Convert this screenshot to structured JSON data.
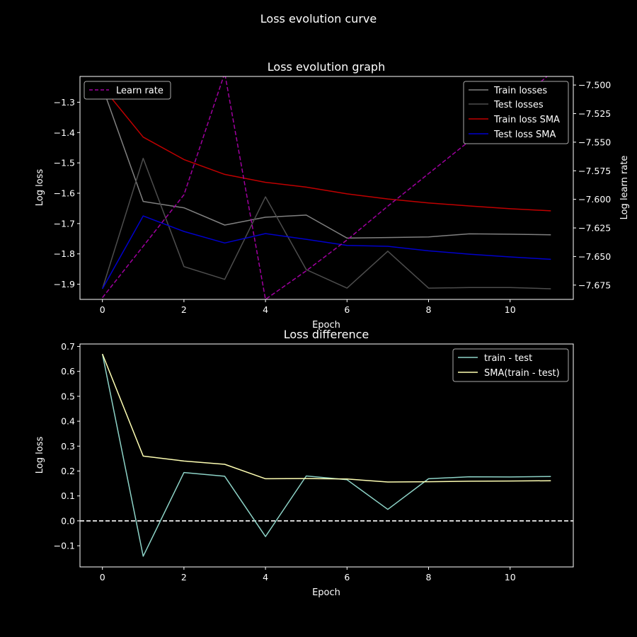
{
  "figure": {
    "suptitle": "Loss evolution curve"
  },
  "colors": {
    "train_losses": "#808080",
    "test_losses": "#4d4d4d",
    "train_sma": "#c00000",
    "test_sma": "#0000cc",
    "learn_rate": "#a000a0",
    "diff": "#8dd3c7",
    "diff_sma": "#ffffb3",
    "zero_line": "#ffffff"
  },
  "chart_data": [
    {
      "type": "line",
      "title": "Loss evolution graph",
      "xlabel": "Epoch",
      "ylabel": "Log loss",
      "y2label": "Log learn rate",
      "xlim": [
        -0.55,
        11.55
      ],
      "ylim": [
        -1.95,
        -1.215
      ],
      "y2lim": [
        -7.6875,
        -7.4925
      ],
      "x_ticks": [
        "0",
        "2",
        "4",
        "6",
        "8",
        "10"
      ],
      "y_ticks": [
        "−1.9",
        "−1.8",
        "−1.7",
        "−1.6",
        "−1.5",
        "−1.4",
        "−1.3"
      ],
      "y2_ticks": [
        "−7.675",
        "−7.650",
        "−7.625",
        "−7.600",
        "−7.575",
        "−7.550",
        "−7.525",
        "−7.500"
      ],
      "x": [
        0,
        1,
        2,
        3,
        4,
        5,
        6,
        7,
        8,
        9,
        10,
        11
      ],
      "series": [
        {
          "name": "Train losses",
          "axis": "left",
          "style": "solid",
          "color_key": "train_losses",
          "values": [
            -1.25,
            -1.627,
            -1.648,
            -1.705,
            -1.679,
            -1.672,
            -1.748,
            -1.746,
            -1.744,
            -1.734,
            -1.735,
            -1.737
          ]
        },
        {
          "name": "Test losses",
          "axis": "left",
          "style": "solid",
          "color_key": "test_losses",
          "values": [
            -1.915,
            -1.485,
            -1.842,
            -1.884,
            -1.612,
            -1.852,
            -1.913,
            -1.791,
            -1.913,
            -1.911,
            -1.911,
            -1.915
          ]
        },
        {
          "name": "Train loss SMA",
          "axis": "left",
          "style": "solid",
          "color_key": "train_sma",
          "values": [
            -1.25,
            -1.415,
            -1.489,
            -1.538,
            -1.564,
            -1.58,
            -1.602,
            -1.619,
            -1.632,
            -1.642,
            -1.651,
            -1.658
          ]
        },
        {
          "name": "Test loss SMA",
          "axis": "left",
          "style": "solid",
          "color_key": "test_sma",
          "values": [
            -1.915,
            -1.675,
            -1.726,
            -1.764,
            -1.733,
            -1.752,
            -1.772,
            -1.775,
            -1.79,
            -1.801,
            -1.81,
            -1.818
          ]
        },
        {
          "name": "Learn rate",
          "axis": "right",
          "style": "dashed",
          "color_key": "learn_rate",
          "values": [
            -7.686,
            -7.641,
            -7.596,
            -7.4895,
            -7.6875,
            -7.6625,
            -7.6355,
            -7.606,
            -7.5775,
            -7.549,
            -7.5205,
            -7.4895
          ]
        }
      ],
      "legend_left": {
        "placement": "upper-left",
        "entries": [
          "Learn rate"
        ]
      },
      "legend_right": {
        "placement": "upper-right",
        "entries": [
          "Train losses",
          "Test losses",
          "Train loss SMA",
          "Test loss SMA"
        ]
      }
    },
    {
      "type": "line",
      "title": "Loss difference",
      "xlabel": "Epoch",
      "ylabel": "Log loss",
      "xlim": [
        -0.55,
        11.55
      ],
      "ylim": [
        -0.185,
        0.71
      ],
      "x_ticks": [
        "0",
        "2",
        "4",
        "6",
        "8",
        "10"
      ],
      "y_ticks": [
        "−0.1",
        "0.0",
        "0.1",
        "0.2",
        "0.3",
        "0.4",
        "0.5",
        "0.6",
        "0.7"
      ],
      "x": [
        0,
        1,
        2,
        3,
        4,
        5,
        6,
        7,
        8,
        9,
        10,
        11
      ],
      "series": [
        {
          "name": "train - test",
          "style": "solid",
          "color_key": "diff",
          "values": [
            0.67,
            -0.142,
            0.194,
            0.179,
            -0.063,
            0.18,
            0.165,
            0.046,
            0.169,
            0.177,
            0.176,
            0.178
          ]
        },
        {
          "name": "SMA(train - test)",
          "style": "solid",
          "color_key": "diff_sma",
          "values": [
            0.67,
            0.26,
            0.24,
            0.227,
            0.169,
            0.17,
            0.168,
            0.156,
            0.157,
            0.159,
            0.16,
            0.161
          ]
        }
      ],
      "reference_line": {
        "y": 0,
        "style": "dashed",
        "color_key": "zero_line"
      },
      "legend": {
        "placement": "upper-right",
        "entries": [
          "train - test",
          "SMA(train - test)"
        ]
      }
    }
  ]
}
